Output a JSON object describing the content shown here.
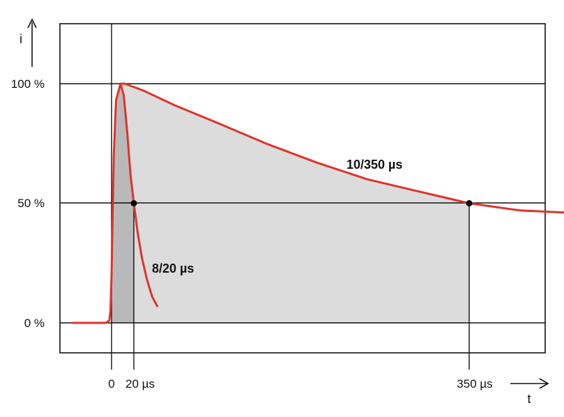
{
  "chart_data": {
    "type": "line",
    "title": "",
    "xlabel": "t",
    "ylabel": "i",
    "y_ticks": [
      "100 %",
      "50 %",
      "0 %"
    ],
    "x_ticks": [
      "0",
      "20 µs",
      "350 µs"
    ],
    "grid": "horizontal lines at 0 %, 50 %, 100 %",
    "series": [
      {
        "name": "8/20 µs",
        "color": "#e0332b",
        "fill": "#b9b9bc",
        "points": [
          [
            -35,
            0
          ],
          [
            -5,
            0
          ],
          [
            -2,
            1
          ],
          [
            -1,
            5
          ],
          [
            0,
            20
          ],
          [
            1,
            45
          ],
          [
            2,
            70
          ],
          [
            4,
            93
          ],
          [
            8,
            100
          ],
          [
            11,
            95
          ],
          [
            14,
            80
          ],
          [
            17,
            62
          ],
          [
            20,
            50
          ],
          [
            24,
            37
          ],
          [
            28,
            27
          ],
          [
            33,
            18
          ],
          [
            38,
            11
          ],
          [
            43,
            7
          ]
        ]
      },
      {
        "name": "10/350 µs",
        "color": "#e0332b",
        "fill": "#dcdcdc",
        "points": [
          [
            8,
            100
          ],
          [
            12,
            100
          ],
          [
            30,
            97
          ],
          [
            60,
            91
          ],
          [
            100,
            84
          ],
          [
            150,
            75
          ],
          [
            200,
            67
          ],
          [
            250,
            60
          ],
          [
            300,
            55
          ],
          [
            350,
            50
          ],
          [
            400,
            47
          ],
          [
            450,
            46
          ],
          [
            470,
            48
          ]
        ]
      }
    ],
    "markers": [
      {
        "x": 20,
        "y": 50
      },
      {
        "x": 350,
        "y": 50
      }
    ]
  }
}
